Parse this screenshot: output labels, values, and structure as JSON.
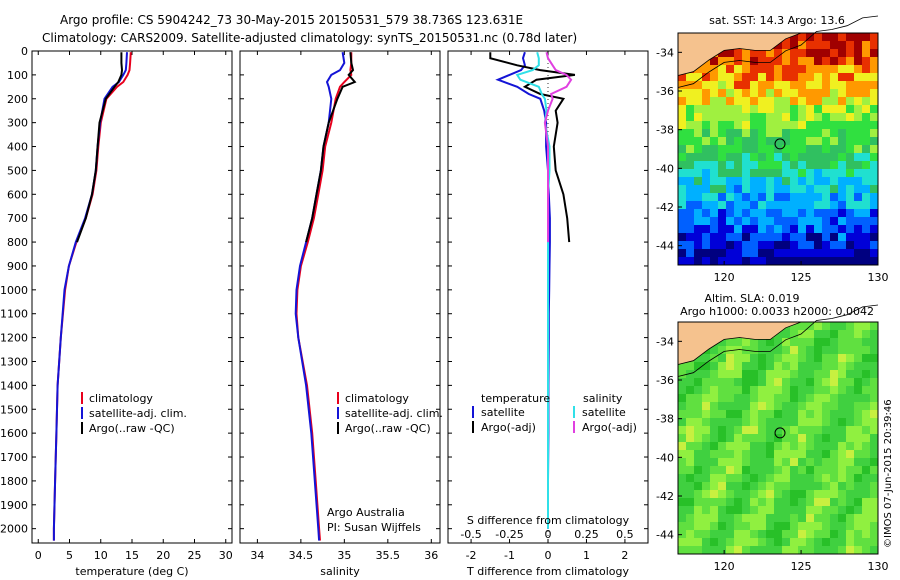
{
  "header": {
    "line1": "Argo profile: CS 5904242_73 30-May-2015 20150531_579 38.736S 123.631E",
    "line2": "Climatology: CARS2009. Satellite-adjusted climatology: synTS_20150531.nc (0.78d later)"
  },
  "credit": "©IMOS 07-Jun-2015 20:39:46",
  "colors": {
    "climatology": "#e8001c",
    "satellite": "#1414d6",
    "argo": "#000000",
    "s_satellite": "#30e0e8",
    "s_argo": "#e040e0",
    "land": "#f5c28e"
  },
  "chart_data": [
    {
      "type": "line",
      "id": "temperature",
      "xlabel": "temperature (deg C)",
      "xlim": [
        -1,
        31
      ],
      "ylim": [
        2060,
        0
      ],
      "xticks": [
        "0",
        "5",
        "10",
        "15",
        "20",
        "25",
        "30"
      ],
      "yticks": [
        "0",
        "100",
        "200",
        "300",
        "400",
        "500",
        "600",
        "700",
        "800",
        "900",
        "1000",
        "1100",
        "1200",
        "1300",
        "1400",
        "1500",
        "1600",
        "1700",
        "1800",
        "1900",
        "2000"
      ],
      "depth": [
        5,
        50,
        80,
        100,
        130,
        150,
        200,
        300,
        400,
        500,
        600,
        700,
        800,
        900,
        1000,
        1200,
        1400,
        1600,
        1800,
        2000,
        2050
      ],
      "series": [
        {
          "name": "climatology",
          "values": [
            14.8,
            14.7,
            14.6,
            14.3,
            13.6,
            12.6,
            10.9,
            10.0,
            9.6,
            9.3,
            8.7,
            7.6,
            6.1,
            4.9,
            4.3,
            3.6,
            3.1,
            2.9,
            2.7,
            2.5,
            2.5
          ]
        },
        {
          "name": "satellite-adj. clim.",
          "values": [
            14.2,
            14.1,
            14.0,
            13.6,
            12.9,
            11.9,
            10.6,
            9.9,
            9.5,
            9.2,
            8.6,
            7.5,
            6.0,
            4.9,
            4.2,
            3.6,
            3.1,
            2.9,
            2.7,
            2.5,
            2.5
          ]
        },
        {
          "name": "Argo(..raw -QC)",
          "values": [
            13.3,
            13.3,
            13.4,
            13.3,
            12.8,
            12.2,
            10.8,
            9.8,
            9.5,
            9.2,
            8.6,
            7.6,
            6.2,
            null,
            null,
            null,
            null,
            null,
            null,
            null,
            null
          ]
        }
      ],
      "legend": [
        "climatology",
        "satellite-adj. clim.",
        "Argo(..raw -QC)"
      ]
    },
    {
      "type": "line",
      "id": "salinity",
      "xlabel": "salinity",
      "xlim": [
        33.8,
        36.1
      ],
      "ylim": [
        2060,
        0
      ],
      "xticks": [
        "34",
        "34.5",
        "35",
        "35.5",
        "36"
      ],
      "depth": [
        5,
        50,
        80,
        100,
        130,
        150,
        200,
        300,
        400,
        500,
        600,
        700,
        800,
        900,
        1000,
        1100,
        1200,
        1400,
        1600,
        1800,
        2000,
        2050
      ],
      "series": [
        {
          "name": "climatology",
          "values": [
            35.08,
            35.08,
            35.07,
            35.08,
            35.0,
            34.95,
            34.9,
            34.85,
            34.78,
            34.75,
            34.7,
            34.65,
            34.58,
            34.5,
            34.46,
            34.45,
            34.47,
            34.57,
            34.63,
            34.67,
            34.71,
            34.72
          ]
        },
        {
          "name": "satellite-adj. clim.",
          "values": [
            34.98,
            35.0,
            34.95,
            34.85,
            34.8,
            34.82,
            34.85,
            34.82,
            34.76,
            34.73,
            34.68,
            34.63,
            34.56,
            34.49,
            34.45,
            34.44,
            34.47,
            34.56,
            34.62,
            34.66,
            34.7,
            34.71
          ]
        },
        {
          "name": "Argo(..raw -QC)",
          "values": [
            35.07,
            35.08,
            35.1,
            35.05,
            35.12,
            34.98,
            34.92,
            34.82,
            34.76,
            34.73,
            34.68,
            34.63,
            34.56,
            null,
            null,
            null,
            null,
            null,
            null,
            null,
            null,
            null
          ]
        }
      ],
      "legend": [
        "climatology",
        "satellite-adj. clim.",
        "Argo(..raw -QC)"
      ],
      "annotation": [
        "Argo Australia",
        "PI: Susan Wijffels"
      ]
    },
    {
      "type": "line",
      "id": "differences",
      "xlabel": "T difference from climatology",
      "top_label": "S difference from climatology",
      "xlim": [
        -2.6,
        2.6
      ],
      "ylim": [
        2060,
        0
      ],
      "xticks": [
        "-2",
        "-1",
        "0",
        "1",
        "2"
      ],
      "top_ticks": [
        "-0.5",
        "-0.25",
        "0",
        "0.25",
        "0.5"
      ],
      "depth": [
        5,
        30,
        60,
        80,
        100,
        120,
        150,
        180,
        200,
        250,
        300,
        400,
        500,
        600,
        700,
        800,
        900,
        1000,
        1100,
        1200,
        1400,
        1600,
        1800,
        2000
      ],
      "legend_groups": [
        {
          "title": "temperature",
          "items": [
            "satellite",
            "Argo(-adj)"
          ]
        },
        {
          "title": "salinity",
          "items": [
            "satellite",
            "Argo(-adj)"
          ]
        }
      ],
      "series": [
        {
          "name": "T satellite",
          "values": [
            -0.6,
            -0.65,
            -0.6,
            -0.7,
            -1.0,
            -1.3,
            -0.8,
            -0.5,
            -0.2,
            -0.1,
            -0.05,
            -0.05,
            0.0,
            0.02,
            0.05,
            0.05,
            0.04,
            0.03,
            0.02,
            0.02,
            0.01,
            0.01,
            0.0,
            0.0
          ]
        },
        {
          "name": "T Argo(-adj)",
          "values": [
            -1.5,
            -1.5,
            -0.8,
            -0.2,
            0.7,
            -0.3,
            -0.6,
            -0.2,
            0.4,
            0.2,
            0.25,
            0.15,
            0.2,
            0.4,
            0.5,
            0.55,
            null,
            null,
            null,
            null,
            null,
            null,
            null,
            null
          ]
        },
        {
          "name": "S satellite",
          "values": [
            -0.07,
            -0.06,
            -0.06,
            -0.1,
            -0.2,
            -0.18,
            -0.06,
            -0.04,
            -0.02,
            -0.01,
            -0.02,
            0.01,
            0.01,
            0.0,
            0.0,
            0.0,
            0.0,
            0.0,
            0.0,
            0.0,
            0.0,
            0.0,
            0.0,
            0.0
          ]
        },
        {
          "name": "S Argo(-adj)",
          "values": [
            -0.01,
            0.0,
            0.03,
            0.05,
            0.12,
            0.15,
            0.12,
            0.02,
            0.03,
            0.0,
            -0.02,
            0.0,
            0.0,
            0.0,
            0.0,
            0.0,
            null,
            null,
            null,
            null,
            null,
            null,
            null,
            null
          ]
        }
      ]
    },
    {
      "type": "heatmap",
      "id": "sst-map",
      "title": "sat. SST: 14.3  Argo: 13.6",
      "xlim": [
        117,
        130
      ],
      "ylim": [
        -45,
        -33
      ],
      "xticks": [
        "120",
        "125",
        "130"
      ],
      "yticks": [
        "-34",
        "-36",
        "-38",
        "-40",
        "-42",
        "-44"
      ],
      "profile_location": {
        "lon": 123.631,
        "lat": -38.736
      },
      "colormap": [
        "#000080",
        "#0000d8",
        "#0060ff",
        "#00b0ff",
        "#20e0d0",
        "#30c060",
        "#30e040",
        "#a0f040",
        "#f0f020",
        "#ff9900",
        "#e83000",
        "#a00000"
      ]
    },
    {
      "type": "heatmap",
      "id": "sla-map",
      "title_line1": "Altim. SLA: 0.019",
      "title_line2": "Argo h1000: 0.0033  h2000: 0.0042",
      "xlim": [
        117,
        130
      ],
      "ylim": [
        -45,
        -33
      ],
      "xticks": [
        "120",
        "125",
        "130"
      ],
      "yticks": [
        "-34",
        "-36",
        "-38",
        "-40",
        "-42",
        "-44"
      ],
      "profile_location": {
        "lon": 123.631,
        "lat": -38.736
      },
      "colormap": [
        "#28c028",
        "#40d040",
        "#60e040",
        "#90f040",
        "#c8f040"
      ]
    }
  ]
}
